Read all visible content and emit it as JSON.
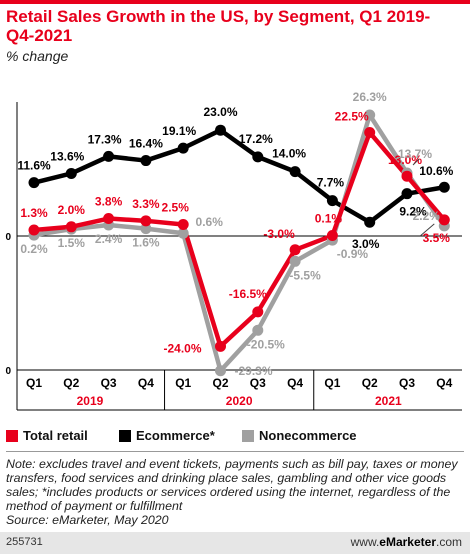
{
  "header": {
    "title": "Retail Sales Growth in the US, by Segment, Q1 2019-Q4-2021",
    "subtitle": "% change",
    "accent_color": "#e8001c"
  },
  "chart_data": {
    "type": "line",
    "quarters": [
      "Q1",
      "Q2",
      "Q3",
      "Q4",
      "Q1",
      "Q2",
      "Q3",
      "Q4",
      "Q1",
      "Q2",
      "Q3",
      "Q4"
    ],
    "years": [
      "2019",
      "2020",
      "2021"
    ],
    "ylim": [
      -30,
      30
    ],
    "y_ticks": [
      "0",
      "0"
    ],
    "series": [
      {
        "name": "Total retail",
        "color": "#e8001c",
        "values": [
          1.3,
          2.0,
          3.8,
          3.3,
          2.5,
          -24.0,
          -16.5,
          -3.0,
          0.1,
          22.5,
          13.0,
          3.5
        ],
        "labels": [
          "1.3%",
          "2.0%",
          "3.8%",
          "3.3%",
          "2.5%",
          "-24.0%",
          "-16.5%",
          "-3.0%",
          "0.1%",
          "22.5%",
          "13.0%",
          "3.5%"
        ]
      },
      {
        "name": "Ecommerce*",
        "color": "#000000",
        "values": [
          11.6,
          13.6,
          17.3,
          16.4,
          19.1,
          23.0,
          17.2,
          14.0,
          7.7,
          3.0,
          9.2,
          10.6
        ],
        "labels": [
          "11.6%",
          "13.6%",
          "17.3%",
          "16.4%",
          "19.1%",
          "23.0%",
          "17.2%",
          "14.0%",
          "7.7%",
          "3.0%",
          "9.2%",
          "10.6%"
        ]
      },
      {
        "name": "Nonecommerce",
        "color": "#a0a0a0",
        "values": [
          0.2,
          1.5,
          2.4,
          1.6,
          0.6,
          -29.3,
          -20.5,
          -5.5,
          -0.9,
          26.3,
          13.7,
          2.2
        ],
        "labels": [
          "0.2%",
          "1.5%",
          "2.4%",
          "1.6%",
          "0.6%",
          "-29.3%",
          "-20.5%",
          "-5.5%",
          "-0.9%",
          "26.3%",
          "13.7%",
          "2.2%"
        ]
      }
    ],
    "grid": false,
    "legend_position": "bottom"
  },
  "legend": [
    {
      "label": "Total retail",
      "color": "#e8001c"
    },
    {
      "label": "Ecommerce*",
      "color": "#000000"
    },
    {
      "label": "Nonecommerce",
      "color": "#a0a0a0"
    }
  ],
  "footer": {
    "note": "Note: excludes travel and event tickets, payments such as bill pay, taxes or money transfers, food services and drinking place sales, gambling and other vice goods sales; *includes products or services ordered using the internet, regardless of the method of payment or fulfillment",
    "source": "Source: eMarketer, May 2020",
    "chart_id": "255731",
    "brand_prefix": "www.",
    "brand_name": "eMarketer",
    "brand_suffix": ".com"
  }
}
